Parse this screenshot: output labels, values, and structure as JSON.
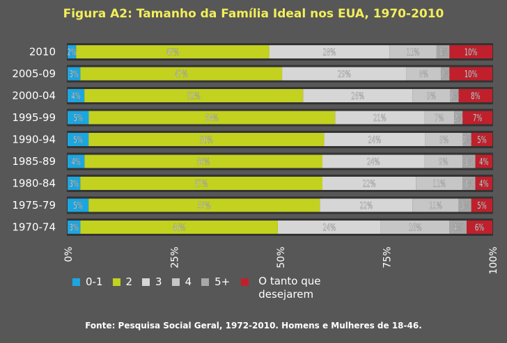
{
  "chart_data": {
    "type": "bar",
    "orientation": "horizontal",
    "stacked": true,
    "normalized": true,
    "title": "Figura A2: Tamanho da Família Ideal nos EUA, 1970-2010",
    "categories": [
      "2010",
      "2005-09",
      "2000-04",
      "1995-99",
      "1990-94",
      "1985-89",
      "1980-84",
      "1975-79",
      "1970-74"
    ],
    "series": [
      {
        "name": "0-1",
        "color": "#1ca6e0",
        "values": [
          2,
          3,
          4,
          5,
          5,
          4,
          3,
          5,
          3
        ]
      },
      {
        "name": "2",
        "color": "#c2d21f",
        "values": [
          45,
          47,
          52,
          58,
          56,
          56,
          57,
          55,
          46
        ]
      },
      {
        "name": "3",
        "color": "#d6d6d6",
        "values": [
          28,
          29,
          26,
          21,
          24,
          24,
          22,
          22,
          24
        ]
      },
      {
        "name": "4",
        "color": "#c6c6c6",
        "values": [
          11,
          8,
          9,
          7,
          9,
          9,
          11,
          11,
          16
        ]
      },
      {
        "name": "5+",
        "color": "#a8a8a8",
        "values": [
          3,
          2,
          2,
          2,
          2,
          3,
          3,
          3,
          4
        ]
      },
      {
        "name": "O tanto que desejarem",
        "color": "#c0202c",
        "values": [
          10,
          10,
          8,
          7,
          5,
          4,
          4,
          5,
          6
        ]
      }
    ],
    "segment_labels": [
      [
        "2%",
        "45%",
        "28%",
        "11%",
        "3%",
        "10%"
      ],
      [
        "3%",
        "47%",
        "29%",
        "8%",
        "2%",
        "10%"
      ],
      [
        "4%",
        "52%",
        "26%",
        "9%",
        "2%",
        "8%"
      ],
      [
        "5%",
        "58%",
        "21%",
        "7%",
        "2%",
        "7%"
      ],
      [
        "5%",
        "56%",
        "24%",
        "9%",
        "2%",
        "5%"
      ],
      [
        "4%",
        "56%",
        "24%",
        "9%",
        "3%",
        "4%"
      ],
      [
        "3%",
        "57%",
        "22%",
        "11%",
        "3%",
        "4%"
      ],
      [
        "5%",
        "55%",
        "22%",
        "11%",
        "3%",
        "5%"
      ],
      [
        "3%",
        "46%",
        "24%",
        "16%",
        "4%",
        "6%"
      ]
    ],
    "x_ticks": [
      "0%",
      "25%",
      "50%",
      "75%",
      "100%"
    ],
    "xlim": [
      0,
      100
    ],
    "legend_position": "bottom",
    "grid": false
  },
  "source": "Fonte: Pesquisa Social Geral, 1972-2010. Homens e Mulheres de 18-46.",
  "colors": {
    "background": "#575757",
    "title": "#f2ee5a",
    "bar_track": "#333333"
  }
}
